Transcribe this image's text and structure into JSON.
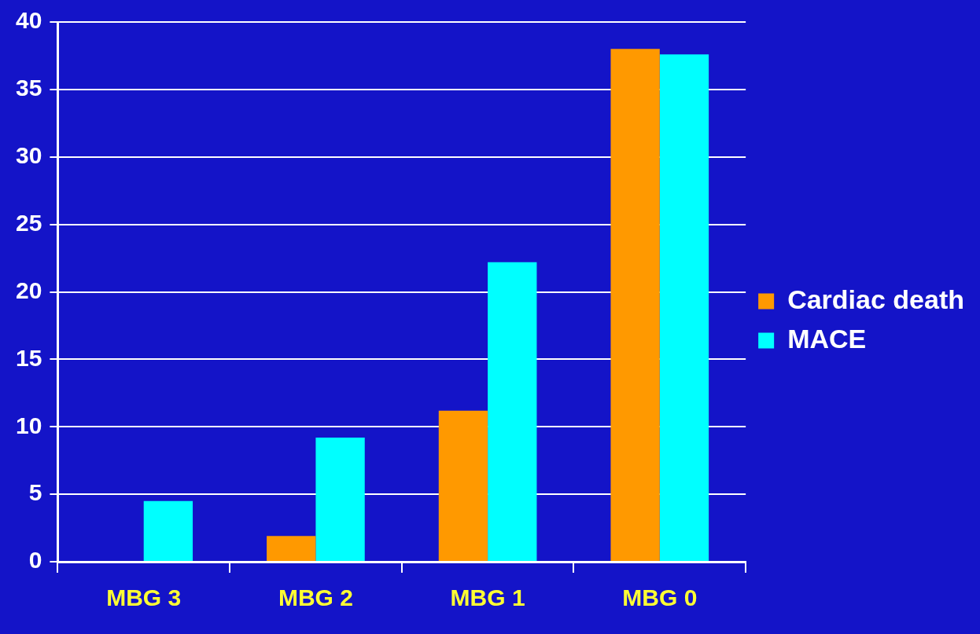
{
  "chart_data": {
    "type": "bar",
    "categories": [
      "MBG 3",
      "MBG 2",
      "MBG 1",
      "MBG 0"
    ],
    "series": [
      {
        "name": "Cardiac death",
        "color": "#ff9900",
        "values": [
          0,
          1.9,
          11.2,
          38.0
        ]
      },
      {
        "name": "MACE",
        "color": "#00ffff",
        "values": [
          4.5,
          9.2,
          22.2,
          37.6
        ]
      }
    ],
    "ylim": [
      0,
      40
    ],
    "yticks": [
      0,
      5,
      10,
      15,
      20,
      25,
      30,
      35,
      40
    ],
    "grid": "y",
    "legend": "right"
  }
}
